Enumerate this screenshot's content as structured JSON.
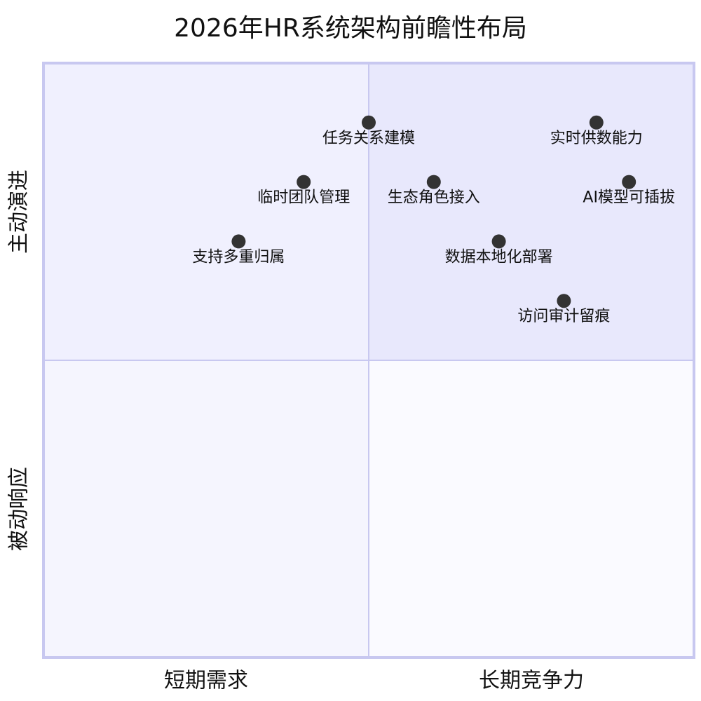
{
  "chart_data": {
    "type": "quadrant",
    "title": "2026年HR系统架构前瞻性布局",
    "x_axis_labels": [
      "短期需求",
      "长期竞争力"
    ],
    "y_axis_labels": [
      "被动响应",
      "主动演进"
    ],
    "xlim": [
      0,
      1
    ],
    "ylim": [
      0,
      1
    ],
    "quadrant_colors": [
      "#e8e8fc",
      "#f0f0fe",
      "#f5f5fe",
      "#fafaff"
    ],
    "border_color": "#c8c8f0",
    "point_color": "#333333",
    "points": [
      {
        "name": "任务关系建模",
        "x": 0.5,
        "y": 0.9
      },
      {
        "name": "实时供数能力",
        "x": 0.85,
        "y": 0.9
      },
      {
        "name": "临时团队管理",
        "x": 0.4,
        "y": 0.8
      },
      {
        "name": "生态角色接入",
        "x": 0.6,
        "y": 0.8
      },
      {
        "name": "AI模型可插拔",
        "x": 0.9,
        "y": 0.8
      },
      {
        "name": "支持多重归属",
        "x": 0.3,
        "y": 0.7
      },
      {
        "name": "数据本地化部署",
        "x": 0.7,
        "y": 0.7
      },
      {
        "name": "访问审计留痕",
        "x": 0.8,
        "y": 0.6
      }
    ]
  }
}
